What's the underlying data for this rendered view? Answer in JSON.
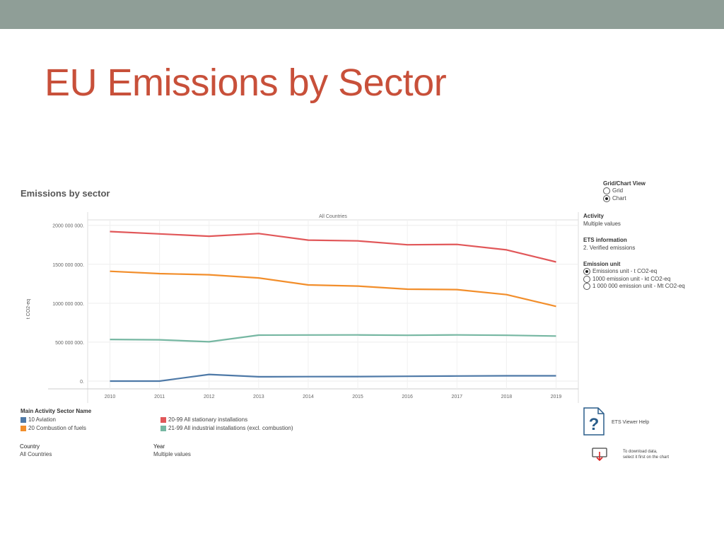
{
  "slide": {
    "title": "EU Emissions by Sector"
  },
  "chart_heading": "Emissions by sector",
  "colors": {
    "aviation": "#4e79a7",
    "combustion": "#f28e2b",
    "stationary": "#e15759",
    "industrial": "#76b7a2",
    "title": "#c8503a",
    "band": "#8f9e97"
  },
  "chart_data": {
    "type": "line",
    "title": "All Countries",
    "ylabel": "t CO2-eq",
    "xlabel": "",
    "x": [
      2010,
      2011,
      2012,
      2013,
      2014,
      2015,
      2016,
      2017,
      2018,
      2019
    ],
    "ylim": [
      -100000000,
      2070000000
    ],
    "yticks": [
      0,
      500000000,
      1000000000,
      1500000000,
      2000000000
    ],
    "ytick_labels": [
      "0.",
      "500 000 000.",
      "1000 000 000.",
      "1500 000 000.",
      "2000 000 000."
    ],
    "grid": true,
    "series": [
      {
        "name": "20-99 All stationary installations",
        "values": [
          1920000000,
          1890000000,
          1860000000,
          1895000000,
          1810000000,
          1800000000,
          1750000000,
          1755000000,
          1685000000,
          1530000000
        ]
      },
      {
        "name": "20 Combustion of fuels",
        "values": [
          1410000000,
          1380000000,
          1365000000,
          1325000000,
          1235000000,
          1220000000,
          1180000000,
          1175000000,
          1110000000,
          960000000
        ]
      },
      {
        "name": "21-99 All industrial installations (excl. combustion)",
        "values": [
          535000000,
          530000000,
          505000000,
          590000000,
          592000000,
          593000000,
          588000000,
          593000000,
          588000000,
          578000000
        ]
      },
      {
        "name": "10 Aviation",
        "values": [
          0,
          0,
          85000000,
          55000000,
          57000000,
          58000000,
          62000000,
          65000000,
          68000000,
          68000000
        ]
      }
    ]
  },
  "legend": {
    "title": "Main Activity Sector Name",
    "items": [
      {
        "label": "10 Aviation",
        "color": "#4e79a7"
      },
      {
        "label": "20 Combustion of fuels",
        "color": "#f28e2b"
      },
      {
        "label": "20-99 All stationary installations",
        "color": "#e15759"
      },
      {
        "label": "21-99 All industrial installations (excl. combustion)",
        "color": "#76b7a2"
      }
    ]
  },
  "filters": {
    "country_label": "Country",
    "country_value": "All Countries",
    "year_label": "Year",
    "year_value": "Multiple values"
  },
  "side": {
    "view_title": "Grid/Chart View",
    "view_grid": "Grid",
    "view_chart": "Chart",
    "activity_label": "Activity",
    "activity_value": "Multiple values",
    "ets_label": "ETS information",
    "ets_value": "2. Verified emissions",
    "unit_label": "Emission unit",
    "unit_options": [
      "Emissions unit - t CO2-eq",
      "1000 emission unit - kt CO2-eq",
      "1 000 000 emission unit - Mt CO2-eq"
    ],
    "help_label": "ETS Viewer Help",
    "download_line1": "To download data,",
    "download_line2": "select it first on the chart"
  }
}
